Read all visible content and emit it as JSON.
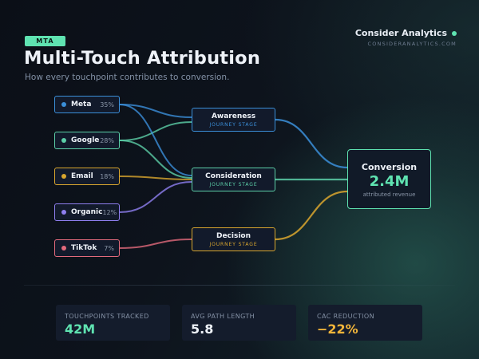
{
  "header": {
    "badge": "MTA",
    "title": "Multi-Touch Attribution",
    "subtitle": "How every touchpoint contributes to conversion."
  },
  "brand": {
    "name": "Consider Analytics",
    "url": "CONSIDERANALYTICS.COM"
  },
  "colors": {
    "accent": "#5fe3b1",
    "blue": "#3b8fd9",
    "teal": "#5ccfa8",
    "gold": "#d9a62e",
    "purple": "#8f7ff0",
    "pink": "#e26a7c"
  },
  "sources": [
    {
      "name": "Meta",
      "pct": "35%",
      "color": "#3b8fd9"
    },
    {
      "name": "Google",
      "pct": "28%",
      "color": "#5ccfa8"
    },
    {
      "name": "Email",
      "pct": "18%",
      "color": "#d9a62e"
    },
    {
      "name": "Organic",
      "pct": "12%",
      "color": "#8f7ff0"
    },
    {
      "name": "TikTok",
      "pct": "7%",
      "color": "#e26a7c"
    }
  ],
  "stages": [
    {
      "name": "Awareness",
      "sub": "JOURNEY STAGE",
      "color": "#3b8fd9"
    },
    {
      "name": "Consideration",
      "sub": "JOURNEY STAGE",
      "color": "#5ccfa8"
    },
    {
      "name": "Decision",
      "sub": "JOURNEY STAGE",
      "color": "#d9a62e"
    }
  ],
  "flows": [
    {
      "from": "Meta",
      "to": "Awareness"
    },
    {
      "from": "Google",
      "to": "Awareness"
    },
    {
      "from": "Google",
      "to": "Consideration"
    },
    {
      "from": "Meta",
      "to": "Consideration"
    },
    {
      "from": "Email",
      "to": "Consideration"
    },
    {
      "from": "Organic",
      "to": "Consideration"
    },
    {
      "from": "TikTok",
      "to": "Decision"
    },
    {
      "from": "Awareness",
      "to": "Conversion"
    },
    {
      "from": "Consideration",
      "to": "Conversion"
    },
    {
      "from": "Decision",
      "to": "Conversion"
    }
  ],
  "conversion": {
    "label": "Conversion",
    "value": "2.4M",
    "sub": "attributed revenue"
  },
  "stats": [
    {
      "label": "TOUCHPOINTS TRACKED",
      "value": "42M",
      "color": "#5fe3b1"
    },
    {
      "label": "AVG PATH LENGTH",
      "value": "5.8",
      "color": "#eef2f8"
    },
    {
      "label": "CAC REDUCTION",
      "value": "−22%",
      "color": "#f2b53a"
    }
  ]
}
